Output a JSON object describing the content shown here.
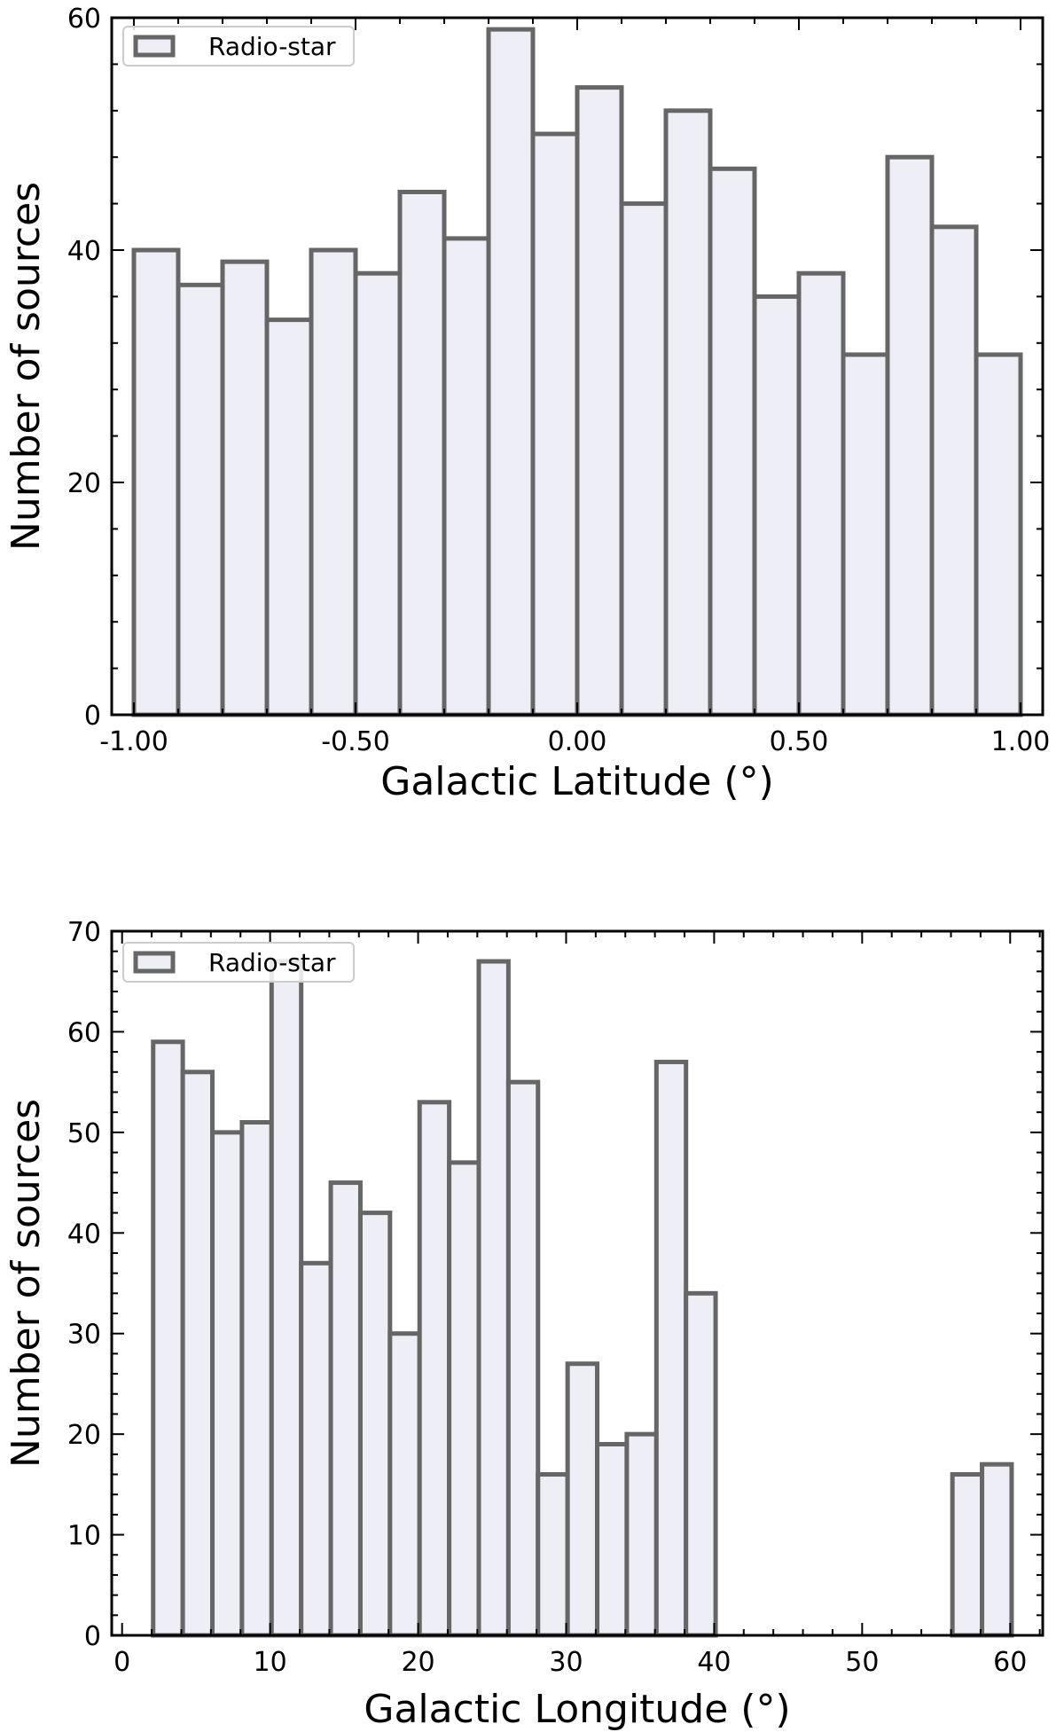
{
  "chart_data": [
    {
      "type": "bar",
      "xlabel": "Galactic Latitude (°)",
      "ylabel": "Number of sources",
      "xlim": [
        -1.05,
        1.05
      ],
      "ylim": [
        0,
        60
      ],
      "xticks": [
        -1.0,
        -0.5,
        0.0,
        0.5,
        1.0
      ],
      "xtick_labels": [
        "-1.00",
        "-0.50",
        "0.00",
        "0.50",
        "1.00"
      ],
      "yticks": [
        0,
        20,
        40,
        60
      ],
      "ytick_labels": [
        "0",
        "20",
        "40",
        "60"
      ],
      "bin_edges": [
        -1.0,
        -0.9,
        -0.8,
        -0.7,
        -0.6,
        -0.5,
        -0.4,
        -0.3,
        -0.2,
        -0.1,
        0.0,
        0.1,
        0.2,
        0.3,
        0.4,
        0.5,
        0.6,
        0.7,
        0.8,
        0.9,
        1.0
      ],
      "values": [
        40,
        37,
        39,
        34,
        40,
        38,
        45,
        41,
        59,
        50,
        54,
        44,
        52,
        47,
        36,
        38,
        31,
        48,
        42,
        31
      ],
      "legend": [
        "Radio-star"
      ],
      "legend_loc": "upper left",
      "grid": false,
      "fill_color": "#eeeef7",
      "edge_color": "#666666"
    },
    {
      "type": "bar",
      "xlabel": "Galactic Longitude (°)",
      "ylabel": "Number of sources",
      "xlim": [
        -0.7,
        62.2
      ],
      "ylim": [
        0,
        70
      ],
      "xticks": [
        0,
        10,
        20,
        30,
        40,
        50,
        60
      ],
      "xtick_labels": [
        "0",
        "10",
        "20",
        "30",
        "40",
        "50",
        "60"
      ],
      "yticks": [
        0,
        10,
        20,
        30,
        40,
        50,
        60,
        70
      ],
      "ytick_labels": [
        "0",
        "10",
        "20",
        "30",
        "40",
        "50",
        "60",
        "70"
      ],
      "bin_edges": [
        2.1,
        4.1,
        6.1,
        8.1,
        10.1,
        12.1,
        14.1,
        16.1,
        18.1,
        20.1,
        22.1,
        24.1,
        26.1,
        28.1,
        30.1,
        32.1,
        34.1,
        36.1,
        38.1,
        40.1,
        42.1,
        44.1,
        46.1,
        48.1,
        50.1,
        52.1,
        54.1,
        56.1,
        58.1,
        60.1
      ],
      "values": [
        59,
        56,
        50,
        51,
        67,
        37,
        45,
        42,
        30,
        53,
        47,
        67,
        55,
        16,
        27,
        19,
        20,
        57,
        34,
        0,
        0,
        0,
        0,
        0,
        0,
        0,
        0,
        16,
        17
      ],
      "legend": [
        "Radio-star"
      ],
      "legend_loc": "upper left",
      "grid": false,
      "fill_color": "#eeeef7",
      "edge_color": "#666666"
    }
  ]
}
